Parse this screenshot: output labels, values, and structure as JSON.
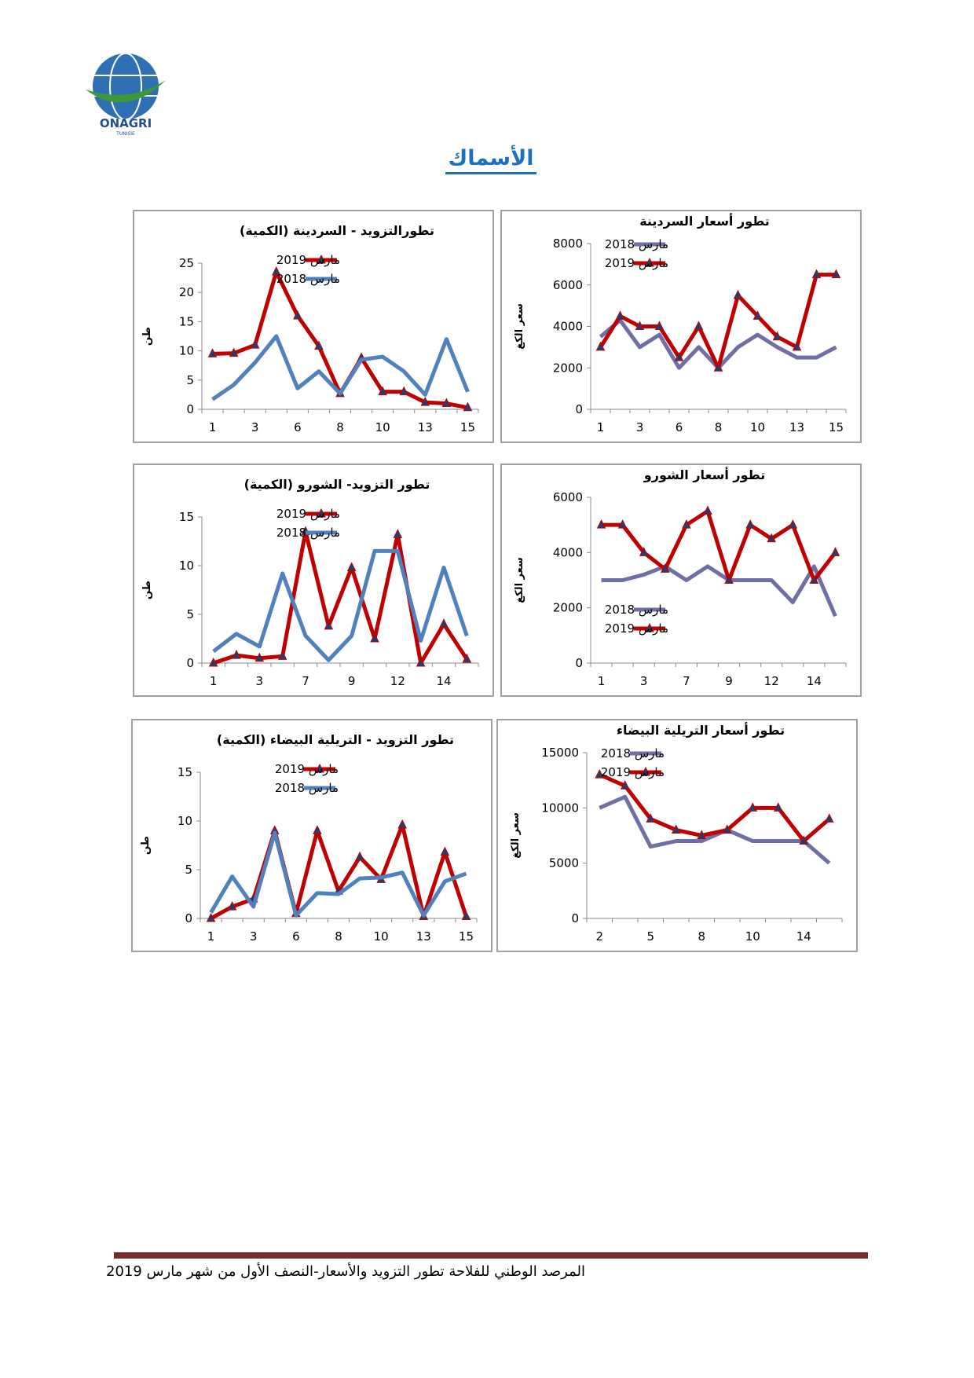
{
  "header": {
    "logo": "ONAGRI",
    "logo_sub": "TUNISIE"
  },
  "title": "الأسماك",
  "chart_data": [
    {
      "type": "line",
      "title": "تطورالتزويد - السردينة (الكمية)",
      "ylabel": "طن",
      "legend": "top-center",
      "categories": [
        1,
        null,
        3,
        null,
        6,
        null,
        8,
        null,
        10,
        null,
        13,
        null,
        15
      ],
      "series": [
        {
          "name": "مارس 2019",
          "color": "#c00000",
          "marker": "triangle",
          "values": [
            9.5,
            9.6,
            11,
            23.5,
            16,
            10.8,
            2.7,
            8.8,
            3,
            3,
            1.2,
            1,
            0.3
          ]
        },
        {
          "name": "مارس 2018",
          "color": "#4f81bd",
          "values": [
            1.7,
            4.2,
            8,
            12.5,
            3.6,
            6.5,
            2.7,
            8.5,
            9,
            6.5,
            2.5,
            12,
            3
          ]
        }
      ],
      "ylim": [
        0,
        25
      ],
      "yticks": [
        0,
        5,
        10,
        15,
        20,
        25
      ]
    },
    {
      "type": "line",
      "title": "تطور أسعار السردينة",
      "ylabel": "سعر الكغ",
      "legend": "top-center",
      "categories": [
        1,
        null,
        3,
        null,
        6,
        null,
        8,
        null,
        10,
        null,
        13,
        null,
        15
      ],
      "series": [
        {
          "name": "مارس 2018",
          "color": "#6f6fa6",
          "values": [
            3500,
            4300,
            3000,
            3600,
            2000,
            3000,
            2000,
            3000,
            3600,
            3000,
            2500,
            2500,
            3000
          ]
        },
        {
          "name": "مارس 2019",
          "color": "#c00000",
          "marker": "triangle",
          "values": [
            3000,
            4500,
            4000,
            4000,
            2500,
            4000,
            2000,
            5500,
            4500,
            3500,
            3000,
            6500,
            6500
          ]
        }
      ],
      "ylim": [
        0,
        8000
      ],
      "yticks": [
        0,
        2000,
        4000,
        6000,
        8000
      ]
    },
    {
      "type": "line",
      "title": "تطور التزويد- الشورو (الكمية)",
      "ylabel": "طن",
      "legend": "top-center",
      "categories": [
        1,
        null,
        3,
        null,
        7,
        null,
        9,
        null,
        12,
        null,
        14,
        null
      ],
      "series": [
        {
          "name": "مارس 2019",
          "color": "#c00000",
          "marker": "triangle",
          "values": [
            0,
            0.8,
            0.5,
            0.7,
            13.5,
            3.8,
            9.8,
            2.5,
            13.2,
            0,
            4,
            0.4
          ]
        },
        {
          "name": "مارس 2018",
          "color": "#4f81bd",
          "values": [
            1.2,
            3,
            1.7,
            9.2,
            2.8,
            0.3,
            2.8,
            11.5,
            11.5,
            2.3,
            9.8,
            2.8
          ]
        }
      ],
      "ylim": [
        0,
        15
      ],
      "yticks": [
        0,
        5,
        10,
        15
      ]
    },
    {
      "type": "line",
      "title": "تطور أسعار الشورو",
      "ylabel": "سعر الكغ",
      "legend": "bottom-center",
      "categories": [
        1,
        null,
        3,
        null,
        7,
        null,
        9,
        null,
        12,
        null,
        14,
        null
      ],
      "series": [
        {
          "name": "مارس 2018",
          "color": "#6f6fa6",
          "values": [
            3000,
            3000,
            3200,
            3500,
            3000,
            3500,
            3000,
            3000,
            3000,
            2200,
            3500,
            1700
          ]
        },
        {
          "name": "مارس 2019",
          "color": "#c00000",
          "marker": "triangle",
          "values": [
            5000,
            5000,
            4000,
            3400,
            5000,
            5500,
            3000,
            5000,
            4500,
            5000,
            3000,
            4000
          ]
        }
      ],
      "ylim": [
        0,
        6000
      ],
      "yticks": [
        0,
        2000,
        4000,
        6000
      ]
    },
    {
      "type": "line",
      "title": "تطور التزويد - التريلية البيضاء (الكمية)",
      "ylabel": "طن",
      "legend": "top-center",
      "categories": [
        1,
        null,
        3,
        null,
        6,
        null,
        8,
        null,
        10,
        null,
        13,
        null,
        15
      ],
      "series": [
        {
          "name": "مارس 2019",
          "color": "#c00000",
          "marker": "triangle",
          "values": [
            0,
            1.2,
            2,
            9,
            0.5,
            9,
            2.8,
            6.3,
            4,
            9.6,
            0.2,
            6.8,
            0.2
          ]
        },
        {
          "name": "مارس 2018",
          "color": "#4f81bd",
          "values": [
            0.6,
            4.3,
            1.2,
            8.8,
            0.3,
            2.6,
            2.5,
            4.1,
            4.2,
            4.7,
            0.3,
            3.8,
            4.6
          ]
        }
      ],
      "ylim": [
        0,
        15
      ],
      "yticks": [
        0,
        5,
        10,
        15
      ]
    },
    {
      "type": "line",
      "title": "تطور أسعار التريلية البيضاء",
      "ylabel": "سعر الكغ",
      "legend": "top-center",
      "categories": [
        2,
        null,
        5,
        null,
        8,
        null,
        10,
        null,
        14,
        null
      ],
      "series": [
        {
          "name": "مارس 2018",
          "color": "#6f6fa6",
          "values": [
            10000,
            11000,
            6500,
            7000,
            7000,
            8000,
            7000,
            7000,
            7000,
            5000
          ]
        },
        {
          "name": "مارس 2019",
          "color": "#c00000",
          "marker": "triangle",
          "values": [
            13000,
            12000,
            9000,
            8000,
            7500,
            8000,
            10000,
            10000,
            7000,
            9000
          ]
        }
      ],
      "ylim": [
        0,
        15000
      ],
      "yticks": [
        0,
        5000,
        10000,
        15000
      ]
    }
  ],
  "footer": "المرصد الوطني للفلاحة تطور التزويد والأسعار-النصف الأول من شهر مارس 2019"
}
